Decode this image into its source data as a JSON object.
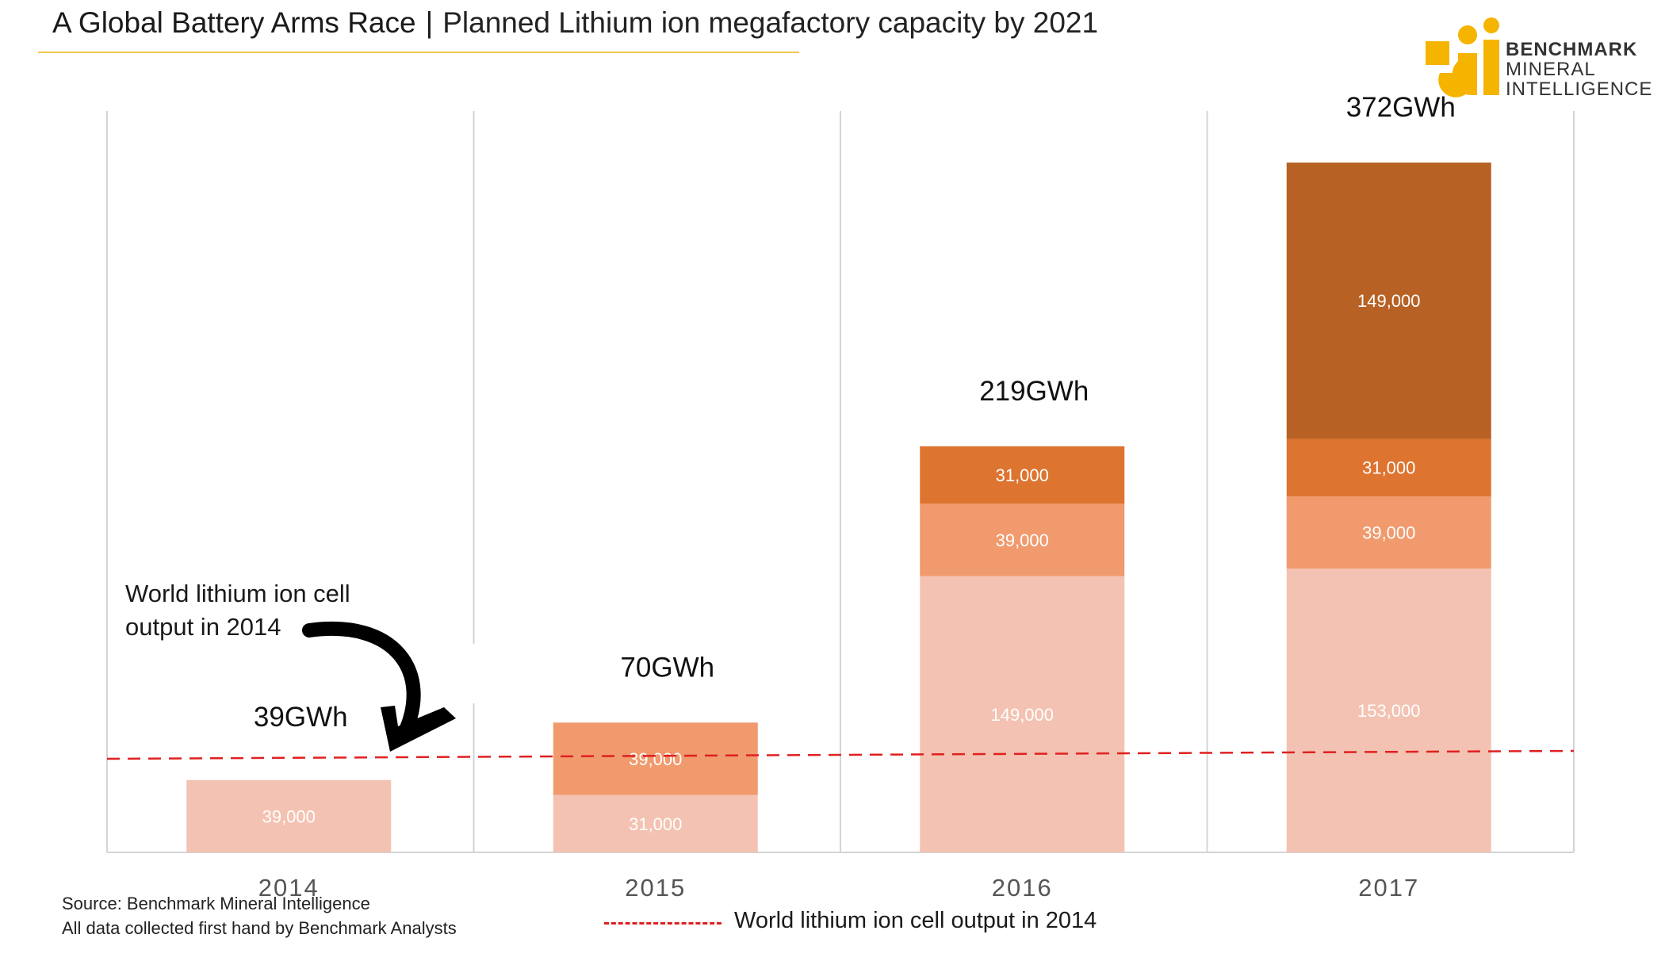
{
  "header": {
    "title": "A Global Battery Arms Race",
    "separator": "|",
    "subtitle": "Planned Lithium ion megafactory capacity by 2021"
  },
  "logo": {
    "line1": "BENCHMARK",
    "line2": "MINERAL",
    "line3": "INTELLIGENCE",
    "color": "#f5b400"
  },
  "annotation": {
    "line1": "World lithium ion cell",
    "line2": "output in 2014"
  },
  "source": {
    "line1": "Source: Benchmark Mineral Intelligence",
    "line2": "All data collected first hand by Benchmark Analysts"
  },
  "legend": {
    "label": "World lithium ion cell output in 2014",
    "color": "#e02020"
  },
  "chart_data": {
    "type": "bar",
    "stacked": true,
    "categories": [
      "2014",
      "2015",
      "2016",
      "2017"
    ],
    "ylim": [
      0,
      400000
    ],
    "reference_line": {
      "value": 39000,
      "label": "World lithium ion cell output in 2014"
    },
    "series": [
      {
        "name": "layer1",
        "color": "#f4c2b2",
        "values": [
          39000,
          31000,
          149000,
          153000
        ],
        "labels": [
          "39,000",
          "31,000",
          "149,000",
          "153,000"
        ]
      },
      {
        "name": "layer2",
        "color": "#f09a6e",
        "values": [
          0,
          39000,
          39000,
          39000
        ],
        "labels": [
          "",
          "39,000",
          "39,000",
          "39,000"
        ]
      },
      {
        "name": "layer3",
        "color": "#dd7430",
        "values": [
          0,
          0,
          31000,
          31000
        ],
        "labels": [
          "",
          "",
          "31,000",
          "31,000"
        ]
      },
      {
        "name": "layer4",
        "color": "#b86125",
        "values": [
          0,
          0,
          0,
          149000
        ],
        "labels": [
          "",
          "",
          "",
          "149,000"
        ]
      }
    ],
    "totals": [
      "39GWh",
      "70GWh",
      "219GWh",
      "372GWh"
    ]
  }
}
